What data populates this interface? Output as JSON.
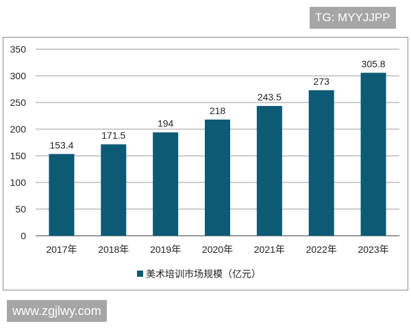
{
  "watermarks": {
    "top": "TG: MYYJJPP",
    "bottom": "www.zgjlwy.com"
  },
  "chart_data": {
    "type": "bar",
    "categories": [
      "2017年",
      "2018年",
      "2019年",
      "2020年",
      "2021年",
      "2022年",
      "2023年"
    ],
    "series": [
      {
        "name": "美术培训市场规模（亿元）",
        "values": [
          153.4,
          171.5,
          194,
          218,
          243.5,
          273,
          305.8
        ],
        "color": "#0e5a74"
      }
    ],
    "data_labels": [
      "153.4",
      "171.5",
      "194",
      "218",
      "243.5",
      "273",
      "305.8"
    ],
    "yticks": [
      0,
      50,
      100,
      150,
      200,
      250,
      300,
      350
    ],
    "ylim": [
      0,
      350
    ],
    "grid": true,
    "legend": "bottom"
  }
}
